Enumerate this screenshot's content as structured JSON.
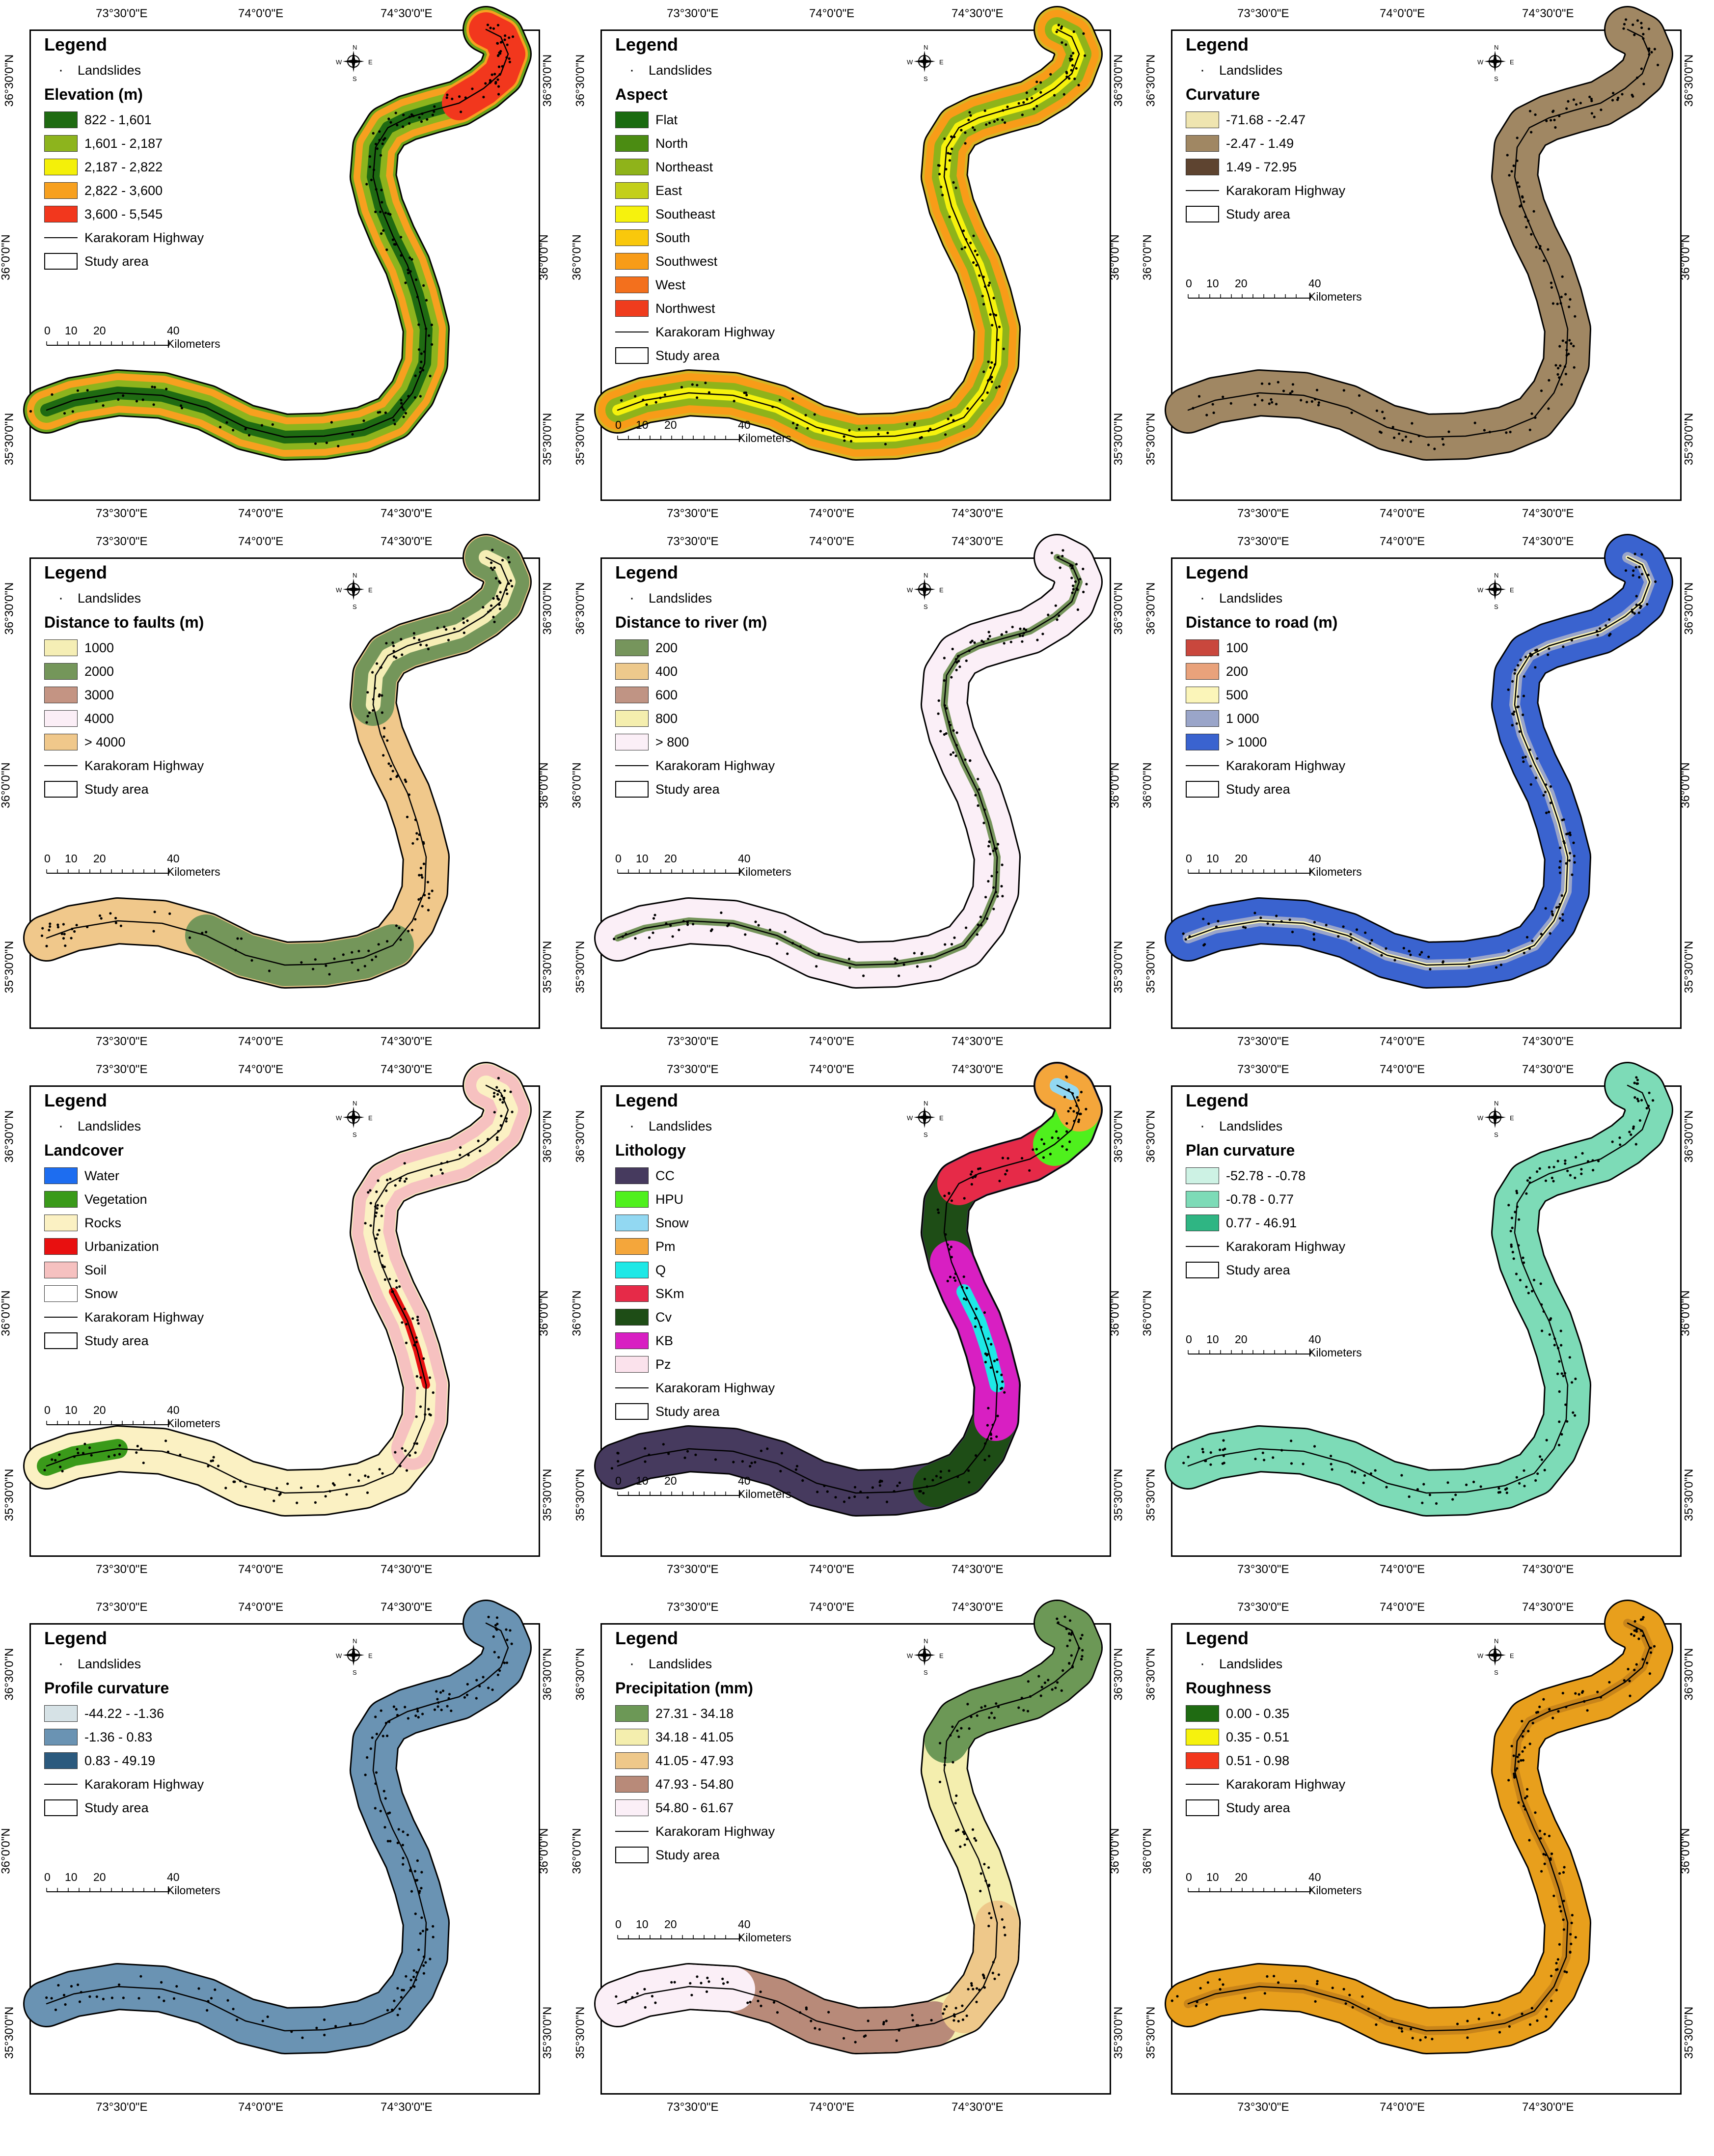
{
  "axis_labels": {
    "x": [
      "73°30'0\"E",
      "74°0'0\"E",
      "74°30'0\"E"
    ],
    "y": [
      "36°30'0\"N",
      "36°0'0\"N",
      "35°30'0\"N"
    ]
  },
  "common": {
    "legend_heading": "Legend",
    "landslides": "Landslides",
    "highway": "Karakoram Highway",
    "study_area": "Study area",
    "scale_ticks": [
      "0",
      "10",
      "20",
      "40 Kilometers"
    ],
    "compass": {
      "n": "N",
      "s": "S",
      "e": "E",
      "w": "W"
    }
  },
  "panels": [
    {
      "id": "elevation",
      "title": "Elevation (m)",
      "fill": "#6aa51c",
      "classes": [
        {
          "label": "822 - 1,601",
          "color": "#1f6b12"
        },
        {
          "label": "1,601 - 2,187",
          "color": "#8db41d"
        },
        {
          "label": "2,187 - 2,822",
          "color": "#f4f009"
        },
        {
          "label": "2,822 - 3,600",
          "color": "#f7a01f"
        },
        {
          "label": "3,600 - 5,545",
          "color": "#f2371d"
        }
      ]
    },
    {
      "id": "aspect",
      "title": "Aspect",
      "fill": "#d7b525",
      "classes": [
        {
          "label": "Flat",
          "color": "#1a6b10"
        },
        {
          "label": "North",
          "color": "#4b8c12"
        },
        {
          "label": "Northeast",
          "color": "#8fb31a"
        },
        {
          "label": "East",
          "color": "#c3cf1a"
        },
        {
          "label": "Southeast",
          "color": "#f6f20d"
        },
        {
          "label": "South",
          "color": "#f9c80c"
        },
        {
          "label": "Southwest",
          "color": "#f89c18"
        },
        {
          "label": "West",
          "color": "#f3701d"
        },
        {
          "label": "Northwest",
          "color": "#ef3c1d"
        }
      ]
    },
    {
      "id": "curvature",
      "title": "Curvature",
      "fill": "#a08763",
      "classes": [
        {
          "label": "-71.68 - -2.47",
          "color": "#efe5b0"
        },
        {
          "label": "-2.47 - 1.49",
          "color": "#a08763"
        },
        {
          "label": "1.49 - 72.95",
          "color": "#5e4430"
        }
      ]
    },
    {
      "id": "faults",
      "title": "Distance to faults (m)",
      "fill": "#f0c88b",
      "classes": [
        {
          "label": "1000",
          "color": "#f5eeb5"
        },
        {
          "label": "2000",
          "color": "#74965a"
        },
        {
          "label": "3000",
          "color": "#c49483"
        },
        {
          "label": "4000",
          "color": "#fbeef6"
        },
        {
          "label": "> 4000",
          "color": "#f0c88b"
        }
      ]
    },
    {
      "id": "river",
      "title": "Distance to river (m)",
      "fill": "#fbeff7",
      "classes": [
        {
          "label": "200",
          "color": "#76955c"
        },
        {
          "label": "400",
          "color": "#edc98c"
        },
        {
          "label": "600",
          "color": "#c09484"
        },
        {
          "label": "800",
          "color": "#f4eeae"
        },
        {
          "label": "> 800",
          "color": "#fbeff7"
        }
      ]
    },
    {
      "id": "road",
      "title": "Distance to road (m)",
      "fill": "#3a63cf",
      "classes": [
        {
          "label": "100",
          "color": "#c9473d"
        },
        {
          "label": "200",
          "color": "#e9a27b"
        },
        {
          "label": "500",
          "color": "#fbf5b9"
        },
        {
          "label": "1 000",
          "color": "#9aa5c9"
        },
        {
          "label": "> 1000",
          "color": "#3a63cf"
        }
      ]
    },
    {
      "id": "landcover",
      "title": "Landcover",
      "fill": "#fbf1c3",
      "classes": [
        {
          "label": "Water",
          "color": "#1d6df0"
        },
        {
          "label": "Vegetation",
          "color": "#3a9a1a"
        },
        {
          "label": "Rocks",
          "color": "#fbf1c3"
        },
        {
          "label": "Urbanization",
          "color": "#e81010"
        },
        {
          "label": "Soil",
          "color": "#f6c1c0"
        },
        {
          "label": "Snow",
          "color": "#ffffff"
        }
      ]
    },
    {
      "id": "lithology",
      "title": "Lithology",
      "fill": "#463a5e",
      "classes": [
        {
          "label": "CC",
          "color": "#463a5e"
        },
        {
          "label": "HPU",
          "color": "#4ff01d"
        },
        {
          "label": "Snow",
          "color": "#92d8f2"
        },
        {
          "label": "Pm",
          "color": "#f4a63b"
        },
        {
          "label": "Q",
          "color": "#1ee8e6"
        },
        {
          "label": "SKm",
          "color": "#e62a48"
        },
        {
          "label": "Cv",
          "color": "#1e4d16"
        },
        {
          "label": "KB",
          "color": "#d81fc2"
        },
        {
          "label": "Pz",
          "color": "#fbe2ec"
        }
      ]
    },
    {
      "id": "plan",
      "title": "Plan curvature",
      "fill": "#7ddbb7",
      "classes": [
        {
          "label": "-52.78 - -0.78",
          "color": "#cdf2e4"
        },
        {
          "label": "-0.78 - 0.77",
          "color": "#7ddbb7"
        },
        {
          "label": "0.77 - 46.91",
          "color": "#2fb583"
        }
      ]
    },
    {
      "id": "profile",
      "title": "Profile curvature",
      "fill": "#6a93b3",
      "classes": [
        {
          "label": "-44.22 - -1.36",
          "color": "#d6e2e6"
        },
        {
          "label": "-1.36 - 0.83",
          "color": "#6a93b3"
        },
        {
          "label": "0.83 - 49.19",
          "color": "#2b5a7e"
        }
      ]
    },
    {
      "id": "precipitation",
      "title": "Precipitation (mm)",
      "fill": "#f4eeae",
      "classes": [
        {
          "label": "27.31 - 34.18",
          "color": "#6c9856"
        },
        {
          "label": "34.18 - 41.05",
          "color": "#f4eeae"
        },
        {
          "label": "41.05 - 47.93",
          "color": "#eec88a"
        },
        {
          "label": "47.93 - 54.80",
          "color": "#b88a79"
        },
        {
          "label": "54.80 - 61.67",
          "color": "#fbeff7"
        }
      ]
    },
    {
      "id": "roughness",
      "title": "Roughness",
      "fill": "#e89f1c",
      "classes": [
        {
          "label": "0.00 - 0.35",
          "color": "#1f6b12"
        },
        {
          "label": "0.35 - 0.51",
          "color": "#f6f20d"
        },
        {
          "label": "0.51 - 0.98",
          "color": "#f2371d"
        }
      ]
    }
  ]
}
